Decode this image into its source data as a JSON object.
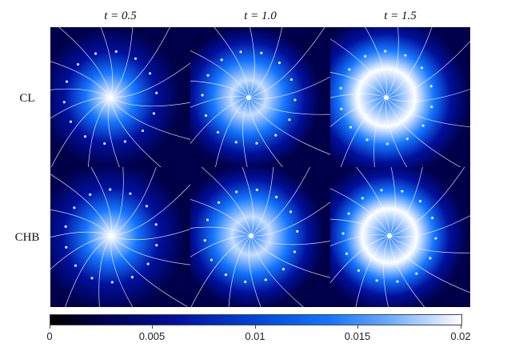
{
  "columns": [
    {
      "label": "t = 0.5",
      "time": 0.5
    },
    {
      "label": "t = 1.0",
      "time": 1.0
    },
    {
      "label": "t = 1.5",
      "time": 1.5
    }
  ],
  "rows": [
    {
      "label": "CL"
    },
    {
      "label": "CHB"
    }
  ],
  "colorbar": {
    "min": 0,
    "max": 0.02,
    "ticks": [
      "0",
      "0.005",
      "0.01",
      "0.015",
      "0.02"
    ],
    "colors": [
      "#000000",
      "#00004a",
      "#00109c",
      "#0046d8",
      "#1576ff",
      "#6aa8ff",
      "#c4dcff",
      "#ffffff"
    ]
  },
  "field": {
    "glyph_color": "#ffffff",
    "peak_level_by_time": [
      0.011,
      0.016,
      0.02
    ]
  }
}
